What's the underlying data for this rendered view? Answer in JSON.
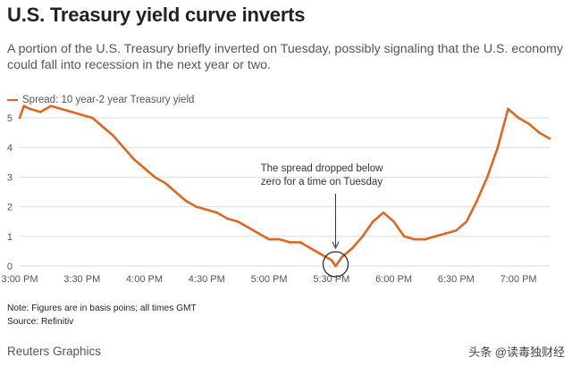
{
  "title": "U.S. Treasury yield curve inverts",
  "subtitle": "A portion of the U.S. Treasury briefly inverted on Tuesday, possibly signaling that the U.S. economy could fall into recession in the next year or two.",
  "legend_label": "Spread: 10 year-2 year Treasury yield",
  "annotation": {
    "line1": "The  spread dropped below",
    "line2": "zero for a time on Tuesday"
  },
  "note": "Note: Figures are in basis poins; all times GMT",
  "source": "Source: Refinitiv",
  "credit": "Reuters Graphics",
  "watermark": "头条 @读毒独财经",
  "colors": {
    "line": "#e0671f",
    "grid": "#dddddd"
  },
  "chart_data": {
    "type": "line",
    "title": "U.S. Treasury yield curve inverts",
    "xlabel": "",
    "ylabel": "",
    "ylim": [
      0,
      5
    ],
    "xlim": [
      "3:00 PM",
      "7:15 PM"
    ],
    "yticks": [
      0,
      1,
      2,
      3,
      4,
      5
    ],
    "xticks": [
      "3:00 PM",
      "3:30 PM",
      "4:00 PM",
      "4:30 PM",
      "5:00 PM",
      "5:30 PM",
      "6:00 PM",
      "6:30 PM",
      "7:00 PM"
    ],
    "grid": "horizontal",
    "legend_position": "top-left",
    "series": [
      {
        "name": "Spread: 10 year-2 year Treasury yield",
        "x": [
          "3:00 PM",
          "3:02 PM",
          "3:05 PM",
          "3:10 PM",
          "3:15 PM",
          "3:20 PM",
          "3:25 PM",
          "3:30 PM",
          "3:35 PM",
          "3:40 PM",
          "3:45 PM",
          "3:50 PM",
          "3:55 PM",
          "4:00 PM",
          "4:05 PM",
          "4:10 PM",
          "4:15 PM",
          "4:20 PM",
          "4:25 PM",
          "4:30 PM",
          "4:35 PM",
          "4:40 PM",
          "4:45 PM",
          "4:50 PM",
          "4:55 PM",
          "5:00 PM",
          "5:05 PM",
          "5:10 PM",
          "5:15 PM",
          "5:20 PM",
          "5:25 PM",
          "5:30 PM",
          "5:32 PM",
          "5:35 PM",
          "5:40 PM",
          "5:45 PM",
          "5:50 PM",
          "5:55 PM",
          "6:00 PM",
          "6:05 PM",
          "6:10 PM",
          "6:15 PM",
          "6:20 PM",
          "6:25 PM",
          "6:30 PM",
          "6:35 PM",
          "6:40 PM",
          "6:45 PM",
          "6:50 PM",
          "6:55 PM",
          "7:00 PM",
          "7:05 PM",
          "7:10 PM",
          "7:15 PM"
        ],
        "values": [
          5.0,
          5.4,
          5.3,
          5.2,
          5.4,
          5.3,
          5.2,
          5.1,
          5.0,
          4.7,
          4.4,
          4.0,
          3.6,
          3.3,
          3.0,
          2.8,
          2.5,
          2.2,
          2.0,
          1.9,
          1.8,
          1.6,
          1.5,
          1.3,
          1.1,
          0.9,
          0.9,
          0.8,
          0.8,
          0.6,
          0.4,
          0.2,
          0.0,
          0.3,
          0.6,
          1.0,
          1.5,
          1.8,
          1.5,
          1.0,
          0.9,
          0.9,
          1.0,
          1.1,
          1.2,
          1.5,
          2.2,
          3.0,
          4.0,
          5.3,
          5.0,
          4.8,
          4.5,
          4.3
        ]
      }
    ],
    "highlight": {
      "x": "5:32 PM",
      "value": 0.0
    }
  }
}
